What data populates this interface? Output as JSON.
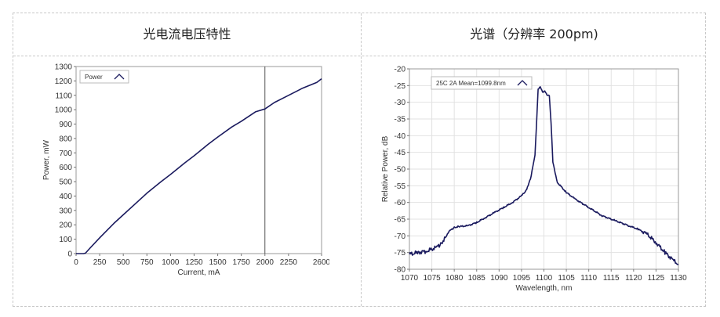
{
  "headers": {
    "left": "光电流电压特性",
    "right": "光谱（分辨率 200pm)"
  },
  "chart_data": [
    {
      "type": "line",
      "xlabel": "Current, mA",
      "ylabel": "Power, mW",
      "xlim": [
        0,
        2600
      ],
      "ylim": [
        0,
        1300
      ],
      "xticks": [
        "0",
        "250",
        "500",
        "750",
        "1000",
        "1250",
        "1500",
        "1750",
        "2000",
        "2250",
        "2600"
      ],
      "yticks": [
        "0",
        "100",
        "200",
        "300",
        "400",
        "500",
        "600",
        "700",
        "800",
        "900",
        "1000",
        "1100",
        "1200",
        "1300"
      ],
      "legend": {
        "entries": [
          "Power"
        ],
        "placement": "top-left"
      },
      "marker_x": 2000,
      "series": [
        {
          "name": "Power",
          "color": "#1a1a5e",
          "x": [
            0,
            80,
            100,
            150,
            250,
            400,
            500,
            650,
            750,
            900,
            1000,
            1150,
            1250,
            1400,
            1500,
            1650,
            1750,
            1900,
            2000,
            2100,
            2250,
            2400,
            2550,
            2600
          ],
          "y": [
            0,
            0,
            3,
            40,
            110,
            210,
            270,
            360,
            420,
            500,
            550,
            630,
            680,
            760,
            810,
            880,
            920,
            985,
            1005,
            1050,
            1100,
            1150,
            1190,
            1215
          ]
        }
      ]
    },
    {
      "type": "line",
      "xlabel": "Wavelength, nm",
      "ylabel": "Relative Power, dB",
      "xlim": [
        1070,
        1130
      ],
      "ylim": [
        -80,
        -20
      ],
      "xticks": [
        "1070",
        "1075",
        "1080",
        "1085",
        "1090",
        "1095",
        "1100",
        "1105",
        "1110",
        "1115",
        "1120",
        "1125",
        "1130"
      ],
      "yticks": [
        "-20",
        "-25",
        "-30",
        "-35",
        "-40",
        "-45",
        "-50",
        "-55",
        "-60",
        "-65",
        "-70",
        "-75",
        "-80"
      ],
      "legend": {
        "entries": [
          "25C 2A Mean=1099.8nm"
        ],
        "placement": "top-left"
      },
      "series": [
        {
          "name": "25C 2A Mean=1099.8nm",
          "color": "#1a1a5e",
          "x": [
            1070,
            1072,
            1074,
            1076,
            1077,
            1078,
            1079,
            1080,
            1081,
            1083,
            1085,
            1087,
            1089,
            1091,
            1093,
            1095,
            1096,
            1097,
            1098,
            1098.3,
            1098.7,
            1099.2,
            1099.7,
            1100.2,
            1100.7,
            1101.2,
            1101.6,
            1102,
            1103,
            1105,
            1107,
            1110,
            1113,
            1116,
            1119,
            1121,
            1123,
            1125,
            1127,
            1129,
            1130
          ],
          "y": [
            -75.5,
            -75,
            -74.5,
            -73.5,
            -72.5,
            -70.5,
            -68.5,
            -67.5,
            -67.2,
            -67,
            -66,
            -64.5,
            -63,
            -61.5,
            -60,
            -58,
            -56.5,
            -53,
            -46,
            -38,
            -26,
            -25.5,
            -27,
            -26.5,
            -28,
            -28,
            -36,
            -48,
            -54,
            -57,
            -59,
            -61.5,
            -64,
            -65.5,
            -67,
            -68,
            -69.5,
            -72,
            -75,
            -77.5,
            -78.5
          ]
        }
      ]
    }
  ]
}
